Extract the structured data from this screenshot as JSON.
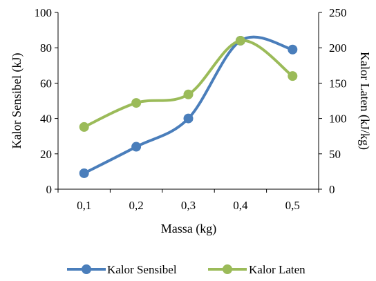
{
  "chart_data": {
    "type": "line",
    "smooth": true,
    "x": [
      "0,1",
      "0,2",
      "0,3",
      "0,4",
      "0,5"
    ],
    "xlabel": "Massa (kg)",
    "ylabel_left": "Kalor Sensibel (kJ)",
    "ylabel_right": "Kalor Laten (kJ/kg)",
    "ylim_left": [
      0,
      100
    ],
    "yticks_left": [
      "0",
      "20",
      "40",
      "60",
      "80",
      "100"
    ],
    "ylim_right": [
      0,
      250
    ],
    "yticks_right": [
      "0",
      "50",
      "100",
      "150",
      "200",
      "250"
    ],
    "grid": false,
    "legend_position": "bottom",
    "series": [
      {
        "name": "Kalor Sensibel",
        "axis": "left",
        "color": "#4a7ebb",
        "values": [
          9,
          24,
          40,
          84,
          79
        ]
      },
      {
        "name": "Kalor Laten",
        "axis": "right",
        "color": "#9bbb59",
        "values": [
          88,
          122,
          134,
          210,
          160
        ]
      }
    ]
  }
}
